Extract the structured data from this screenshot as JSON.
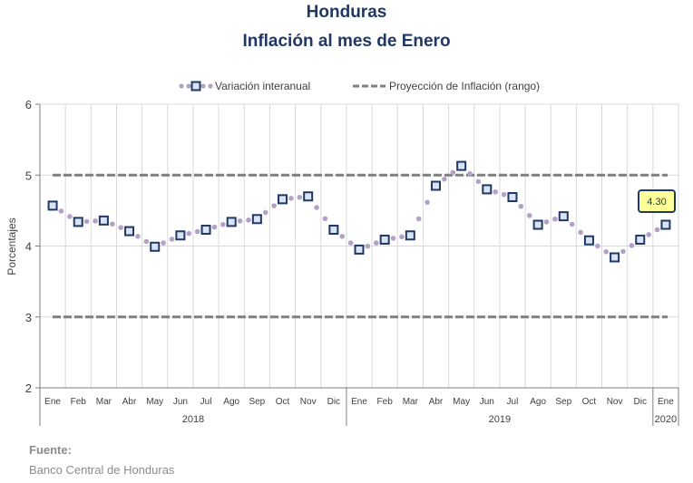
{
  "chart_data": {
    "type": "line",
    "title": "Honduras",
    "subtitle": "Inflación al mes de Enero",
    "ylabel": "Porcentajes",
    "ylim": [
      2,
      6
    ],
    "yticks": [
      "2",
      "3",
      "4",
      "5",
      "6"
    ],
    "grid": true,
    "legend_position": "top",
    "months": [
      "Ene",
      "Feb",
      "Mar",
      "Abr",
      "May",
      "Jun",
      "Jul",
      "Ago",
      "Sep",
      "Oct",
      "Nov",
      "Dic",
      "Ene",
      "Feb",
      "Mar",
      "Abr",
      "May",
      "Jun",
      "Jul",
      "Ago",
      "Sep",
      "Oct",
      "Nov",
      "Dic",
      "Ene"
    ],
    "years": [
      {
        "label": "2018",
        "months": 12
      },
      {
        "label": "2019",
        "months": 12
      },
      {
        "label": "2020",
        "months": 1
      }
    ],
    "series": [
      {
        "name": "Variación interanual",
        "color": "#1f3864",
        "dot_color": "#b3a2c7",
        "values": [
          4.57,
          4.34,
          4.36,
          4.21,
          3.99,
          4.15,
          4.23,
          4.34,
          4.38,
          4.66,
          4.7,
          4.23,
          3.95,
          4.09,
          4.15,
          4.85,
          5.13,
          4.8,
          4.69,
          4.3,
          4.42,
          4.08,
          3.84,
          4.09,
          4.3
        ]
      },
      {
        "name": "Proyección de Inflación (rango)",
        "color": "#7f7f7f",
        "values_upper": 5.0,
        "values_lower": 3.0
      }
    ],
    "annotation": {
      "text": "4.30",
      "index": 24,
      "bg": "#ffff99",
      "border": "#1f3864"
    }
  },
  "source": {
    "label": "Fuente:",
    "text": "Banco Central de Honduras"
  }
}
